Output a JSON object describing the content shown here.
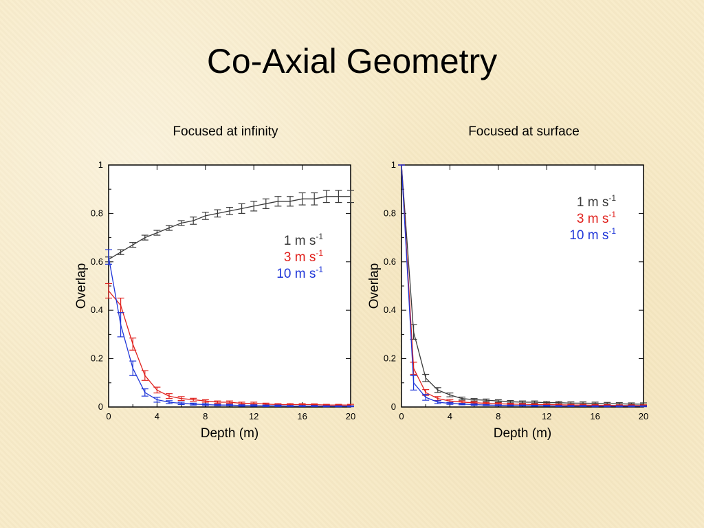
{
  "slide": {
    "title": "Co-Axial Geometry"
  },
  "chart_data": [
    {
      "type": "line",
      "title": "Focused at infinity",
      "xlabel": "Depth (m)",
      "ylabel": "Overlap",
      "xlim": [
        0,
        20
      ],
      "ylim": [
        0,
        1
      ],
      "xticks": [
        "0",
        "4",
        "8",
        "12",
        "16",
        "20"
      ],
      "yticks": [
        "0",
        "0.2",
        "0.4",
        "0.6",
        "0.8",
        "1"
      ],
      "grid": false,
      "legend": "right",
      "x": [
        0,
        1,
        2,
        3,
        4,
        5,
        6,
        7,
        8,
        9,
        10,
        11,
        12,
        13,
        14,
        15,
        16,
        17,
        18,
        19,
        20
      ],
      "series": [
        {
          "name": "1 m s",
          "name_sup": "-1",
          "color": "#3a3a3a",
          "values": [
            0.61,
            0.64,
            0.67,
            0.7,
            0.72,
            0.74,
            0.76,
            0.77,
            0.79,
            0.8,
            0.81,
            0.82,
            0.83,
            0.84,
            0.85,
            0.85,
            0.86,
            0.86,
            0.87,
            0.87,
            0.87
          ],
          "errors": [
            0.01,
            0.01,
            0.01,
            0.01,
            0.01,
            0.01,
            0.01,
            0.015,
            0.015,
            0.015,
            0.015,
            0.02,
            0.02,
            0.02,
            0.02,
            0.02,
            0.025,
            0.025,
            0.025,
            0.025,
            0.025
          ]
        },
        {
          "name": "3 m s",
          "name_sup": "-1",
          "color": "#e0201c",
          "values": [
            0.48,
            0.42,
            0.26,
            0.13,
            0.07,
            0.045,
            0.035,
            0.03,
            0.025,
            0.02,
            0.02,
            0.015,
            0.015,
            0.012,
            0.01,
            0.01,
            0.01,
            0.01,
            0.008,
            0.008,
            0.008
          ],
          "errors": [
            0.03,
            0.03,
            0.025,
            0.02,
            0.012,
            0.01,
            0.008,
            0.006,
            0.005,
            0.005,
            0.005,
            0.005,
            0.005,
            0.004,
            0.004,
            0.004,
            0.004,
            0.003,
            0.003,
            0.003,
            0.003
          ]
        },
        {
          "name": "10 m s",
          "name_sup": "-1",
          "color": "#1f36d8",
          "values": [
            0.62,
            0.34,
            0.16,
            0.06,
            0.03,
            0.02,
            0.015,
            0.012,
            0.01,
            0.008,
            0.008,
            0.006,
            0.006,
            0.005,
            0.005,
            0.004,
            0.004,
            0.004,
            0.003,
            0.003,
            0.003
          ],
          "errors": [
            0.03,
            0.05,
            0.03,
            0.015,
            0.01,
            0.006,
            0.005,
            0.004,
            0.004,
            0.003,
            0.003,
            0.003,
            0.003,
            0.003,
            0.003,
            0.002,
            0.002,
            0.002,
            0.002,
            0.002,
            0.002
          ]
        }
      ]
    },
    {
      "type": "line",
      "title": "Focused at surface",
      "xlabel": "Depth (m)",
      "ylabel": "Overlap",
      "xlim": [
        0,
        20
      ],
      "ylim": [
        0,
        1
      ],
      "xticks": [
        "0",
        "4",
        "8",
        "12",
        "16",
        "20"
      ],
      "yticks": [
        "0",
        "0.2",
        "0.4",
        "0.6",
        "0.8",
        "1"
      ],
      "grid": false,
      "legend": "top-right",
      "x": [
        0,
        1,
        2,
        3,
        4,
        5,
        6,
        7,
        8,
        9,
        10,
        11,
        12,
        13,
        14,
        15,
        16,
        17,
        18,
        19,
        20
      ],
      "series": [
        {
          "name": "1 m s",
          "name_sup": "-1",
          "color": "#3a3a3a",
          "values": [
            1.0,
            0.31,
            0.12,
            0.07,
            0.05,
            0.035,
            0.03,
            0.028,
            0.025,
            0.022,
            0.02,
            0.02,
            0.018,
            0.018,
            0.016,
            0.016,
            0.015,
            0.014,
            0.013,
            0.012,
            0.012
          ],
          "errors": [
            0.0,
            0.03,
            0.015,
            0.01,
            0.008,
            0.006,
            0.005,
            0.005,
            0.005,
            0.005,
            0.005,
            0.005,
            0.005,
            0.005,
            0.005,
            0.005,
            0.005,
            0.005,
            0.005,
            0.005,
            0.005
          ]
        },
        {
          "name": "3 m s",
          "name_sup": "-1",
          "color": "#e0201c",
          "values": [
            1.0,
            0.16,
            0.06,
            0.035,
            0.025,
            0.02,
            0.018,
            0.015,
            0.013,
            0.012,
            0.011,
            0.01,
            0.01,
            0.009,
            0.008,
            0.008,
            0.007,
            0.007,
            0.006,
            0.006,
            0.006
          ],
          "errors": [
            0.0,
            0.025,
            0.012,
            0.008,
            0.006,
            0.005,
            0.004,
            0.004,
            0.004,
            0.003,
            0.003,
            0.003,
            0.003,
            0.003,
            0.003,
            0.003,
            0.003,
            0.003,
            0.003,
            0.003,
            0.003
          ]
        },
        {
          "name": "10 m s",
          "name_sup": "-1",
          "color": "#1f36d8",
          "values": [
            1.0,
            0.1,
            0.04,
            0.02,
            0.015,
            0.012,
            0.01,
            0.008,
            0.007,
            0.006,
            0.006,
            0.005,
            0.005,
            0.004,
            0.004,
            0.004,
            0.003,
            0.003,
            0.003,
            0.003,
            0.003
          ],
          "errors": [
            0.0,
            0.03,
            0.012,
            0.006,
            0.004,
            0.003,
            0.003,
            0.002,
            0.002,
            0.002,
            0.002,
            0.002,
            0.002,
            0.002,
            0.002,
            0.002,
            0.002,
            0.002,
            0.002,
            0.002,
            0.002
          ]
        }
      ]
    }
  ]
}
